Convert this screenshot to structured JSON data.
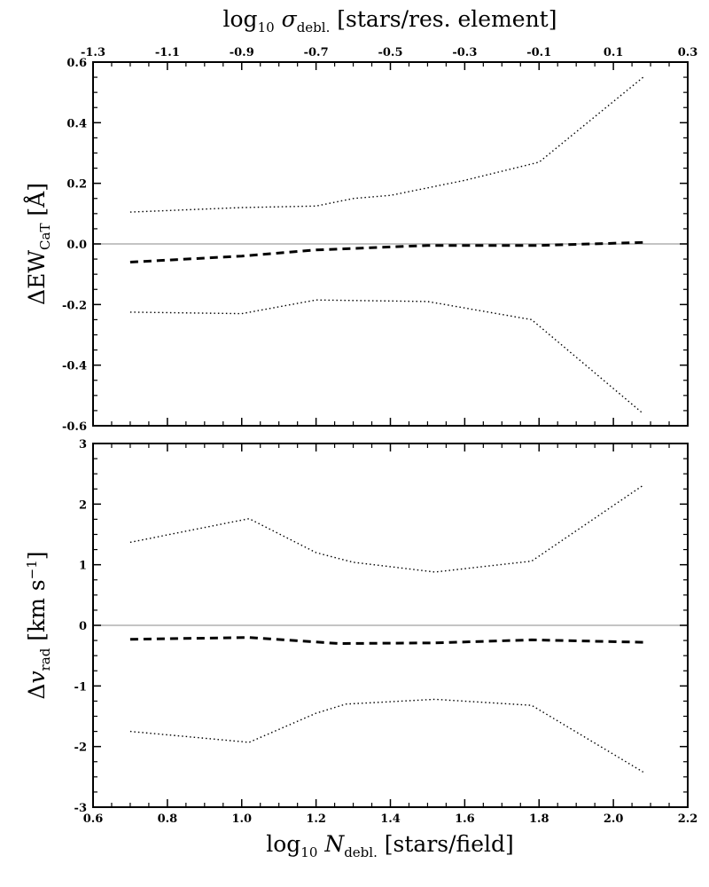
{
  "chart_data": [
    {
      "type": "line",
      "panel": "top",
      "top_xlabel": "log₁₀ σ_debl. [stars/res. element]",
      "top_xlim": [
        -1.3,
        0.3
      ],
      "top_ticks": [
        "-1.3",
        "-1.1",
        "-0.9",
        "-0.7",
        "-0.5",
        "-0.3",
        "-0.1",
        "0.1",
        "0.3"
      ],
      "xlim": [
        0.6,
        2.2
      ],
      "ylabel": "ΔEW_CaT [Å]",
      "ylim": [
        -0.6,
        0.6
      ],
      "yticks": [
        "-0.6",
        "-0.4",
        "-0.2",
        "0.0",
        "0.2",
        "0.4",
        "0.6"
      ],
      "zero_line": true,
      "series": [
        {
          "style": "dashed",
          "x": [
            0.7,
            1.0,
            1.2,
            1.3,
            1.5,
            1.8,
            2.08
          ],
          "y": [
            -0.06,
            -0.04,
            -0.02,
            -0.015,
            -0.005,
            -0.005,
            0.005
          ]
        },
        {
          "style": "dotted",
          "x": [
            0.7,
            1.0,
            1.2,
            1.3,
            1.4,
            1.6,
            1.8,
            2.08
          ],
          "y": [
            0.105,
            0.12,
            0.125,
            0.15,
            0.16,
            0.21,
            0.27,
            0.55
          ]
        },
        {
          "style": "dotted",
          "x": [
            0.7,
            1.0,
            1.2,
            1.5,
            1.78,
            2.08
          ],
          "y": [
            -0.225,
            -0.23,
            -0.185,
            -0.19,
            -0.25,
            -0.56
          ]
        }
      ]
    },
    {
      "type": "line",
      "panel": "bottom",
      "xlabel": "log₁₀ N_debl. [stars/field]",
      "xlim": [
        0.6,
        2.2
      ],
      "xticks": [
        "0.6",
        "0.8",
        "1.0",
        "1.2",
        "1.4",
        "1.6",
        "1.8",
        "2.0",
        "2.2"
      ],
      "ylabel": "Δv_rad [km s⁻¹]",
      "ylim": [
        -3,
        3
      ],
      "yticks": [
        "-3",
        "-2",
        "-1",
        "0",
        "1",
        "2",
        "3"
      ],
      "zero_line": true,
      "series": [
        {
          "style": "dashed",
          "x": [
            0.7,
            1.02,
            1.26,
            1.52,
            1.78,
            2.08
          ],
          "y": [
            -0.23,
            -0.2,
            -0.3,
            -0.29,
            -0.24,
            -0.28
          ]
        },
        {
          "style": "dotted",
          "x": [
            0.7,
            1.02,
            1.2,
            1.3,
            1.52,
            1.78,
            2.08
          ],
          "y": [
            1.37,
            1.76,
            1.2,
            1.04,
            0.88,
            1.06,
            2.31
          ]
        },
        {
          "style": "dotted",
          "x": [
            0.7,
            1.02,
            1.2,
            1.28,
            1.52,
            1.78,
            2.08
          ],
          "y": [
            -1.75,
            -1.93,
            -1.45,
            -1.3,
            -1.22,
            -1.32,
            -2.42
          ]
        }
      ]
    }
  ]
}
